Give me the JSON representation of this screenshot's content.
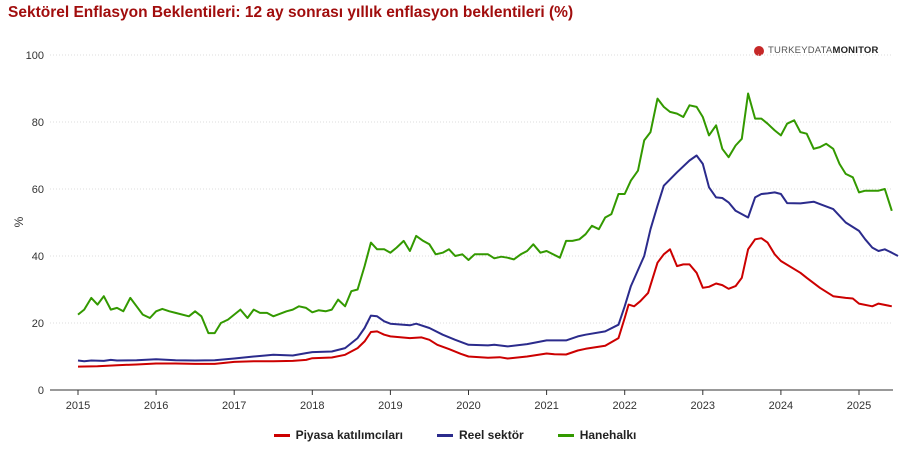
{
  "chart_data": {
    "type": "line",
    "title": "Sektörel Enflasyon Beklentileri: 12 ay sonrası yıllık enflasyon beklentileri (%)",
    "ylabel": "%",
    "xlabel": "",
    "ylim": [
      0,
      100
    ],
    "yticks": [
      0,
      20,
      40,
      60,
      80,
      100
    ],
    "xlim": [
      2015,
      2025.6
    ],
    "xticks": [
      2015,
      2016,
      2017,
      2018,
      2019,
      2020,
      2021,
      2022,
      2023,
      2024,
      2025
    ],
    "grid": true,
    "legend_position": "bottom",
    "series": [
      {
        "name": "Piyasa katılımcıları",
        "color": "#cc0000",
        "points": [
          [
            2015.0,
            7.0
          ],
          [
            2015.25,
            7.1
          ],
          [
            2015.5,
            7.4
          ],
          [
            2015.75,
            7.6
          ],
          [
            2016.0,
            7.9
          ],
          [
            2016.25,
            7.9
          ],
          [
            2016.5,
            7.8
          ],
          [
            2016.75,
            7.8
          ],
          [
            2017.0,
            8.4
          ],
          [
            2017.25,
            8.6
          ],
          [
            2017.5,
            8.6
          ],
          [
            2017.75,
            8.7
          ],
          [
            2017.92,
            9.0
          ],
          [
            2018.0,
            9.5
          ],
          [
            2018.25,
            9.7
          ],
          [
            2018.42,
            10.5
          ],
          [
            2018.58,
            12.5
          ],
          [
            2018.67,
            14.5
          ],
          [
            2018.75,
            17.3
          ],
          [
            2018.83,
            17.5
          ],
          [
            2018.92,
            16.5
          ],
          [
            2019.0,
            16.0
          ],
          [
            2019.25,
            15.5
          ],
          [
            2019.4,
            15.7
          ],
          [
            2019.5,
            15.0
          ],
          [
            2019.6,
            13.5
          ],
          [
            2019.75,
            12.2
          ],
          [
            2019.9,
            10.8
          ],
          [
            2020.0,
            10.0
          ],
          [
            2020.25,
            9.6
          ],
          [
            2020.4,
            9.8
          ],
          [
            2020.5,
            9.4
          ],
          [
            2020.75,
            10.0
          ],
          [
            2021.0,
            10.9
          ],
          [
            2021.1,
            10.7
          ],
          [
            2021.25,
            10.6
          ],
          [
            2021.4,
            11.8
          ],
          [
            2021.5,
            12.3
          ],
          [
            2021.75,
            13.2
          ],
          [
            2021.92,
            15.5
          ],
          [
            2022.0,
            21.5
          ],
          [
            2022.05,
            25.5
          ],
          [
            2022.12,
            25.0
          ],
          [
            2022.2,
            26.5
          ],
          [
            2022.3,
            29.0
          ],
          [
            2022.42,
            38.0
          ],
          [
            2022.5,
            40.5
          ],
          [
            2022.58,
            42.0
          ],
          [
            2022.67,
            37.0
          ],
          [
            2022.75,
            37.5
          ],
          [
            2022.83,
            37.5
          ],
          [
            2022.92,
            35.0
          ],
          [
            2023.0,
            30.5
          ],
          [
            2023.08,
            30.8
          ],
          [
            2023.17,
            31.8
          ],
          [
            2023.25,
            31.3
          ],
          [
            2023.33,
            30.2
          ],
          [
            2023.42,
            31.0
          ],
          [
            2023.5,
            33.5
          ],
          [
            2023.58,
            42.0
          ],
          [
            2023.67,
            45.0
          ],
          [
            2023.75,
            45.3
          ],
          [
            2023.83,
            44.0
          ],
          [
            2023.92,
            40.5
          ],
          [
            2024.0,
            38.5
          ],
          [
            2024.25,
            35.0
          ],
          [
            2024.33,
            33.5
          ],
          [
            2024.5,
            30.5
          ],
          [
            2024.67,
            28.0
          ],
          [
            2024.83,
            27.5
          ],
          [
            2024.92,
            27.3
          ],
          [
            2025.0,
            25.8
          ],
          [
            2025.17,
            25.0
          ],
          [
            2025.25,
            25.8
          ],
          [
            2025.42,
            25.0
          ]
        ]
      },
      {
        "name": "Reel sektör",
        "color": "#2b2b8c",
        "points": [
          [
            2015.0,
            8.8
          ],
          [
            2015.08,
            8.6
          ],
          [
            2015.17,
            8.8
          ],
          [
            2015.33,
            8.7
          ],
          [
            2015.42,
            9.0
          ],
          [
            2015.5,
            8.8
          ],
          [
            2015.75,
            8.9
          ],
          [
            2016.0,
            9.2
          ],
          [
            2016.25,
            8.9
          ],
          [
            2016.5,
            8.8
          ],
          [
            2016.75,
            8.9
          ],
          [
            2017.0,
            9.4
          ],
          [
            2017.25,
            10.0
          ],
          [
            2017.4,
            10.3
          ],
          [
            2017.5,
            10.5
          ],
          [
            2017.75,
            10.3
          ],
          [
            2017.92,
            11.0
          ],
          [
            2018.0,
            11.3
          ],
          [
            2018.25,
            11.5
          ],
          [
            2018.42,
            12.5
          ],
          [
            2018.58,
            15.5
          ],
          [
            2018.67,
            18.5
          ],
          [
            2018.75,
            22.2
          ],
          [
            2018.83,
            22.0
          ],
          [
            2018.92,
            20.5
          ],
          [
            2019.0,
            19.8
          ],
          [
            2019.25,
            19.3
          ],
          [
            2019.33,
            19.8
          ],
          [
            2019.5,
            18.5
          ],
          [
            2019.67,
            16.5
          ],
          [
            2019.83,
            15.0
          ],
          [
            2020.0,
            13.5
          ],
          [
            2020.25,
            13.3
          ],
          [
            2020.33,
            13.5
          ],
          [
            2020.5,
            13.0
          ],
          [
            2020.75,
            13.7
          ],
          [
            2021.0,
            14.8
          ],
          [
            2021.25,
            14.8
          ],
          [
            2021.4,
            16.0
          ],
          [
            2021.5,
            16.5
          ],
          [
            2021.75,
            17.5
          ],
          [
            2021.92,
            19.5
          ],
          [
            2022.0,
            25.0
          ],
          [
            2022.08,
            31.0
          ],
          [
            2022.25,
            40.0
          ],
          [
            2022.33,
            48.0
          ],
          [
            2022.42,
            55.0
          ],
          [
            2022.5,
            61.0
          ],
          [
            2022.67,
            65.0
          ],
          [
            2022.83,
            68.5
          ],
          [
            2022.92,
            70.0
          ],
          [
            2023.0,
            67.5
          ],
          [
            2023.08,
            60.5
          ],
          [
            2023.17,
            57.5
          ],
          [
            2023.25,
            57.3
          ],
          [
            2023.33,
            56.0
          ],
          [
            2023.42,
            53.5
          ],
          [
            2023.58,
            51.5
          ],
          [
            2023.67,
            57.5
          ],
          [
            2023.75,
            58.5
          ],
          [
            2023.83,
            58.7
          ],
          [
            2023.92,
            59.0
          ],
          [
            2024.0,
            58.5
          ],
          [
            2024.08,
            55.8
          ],
          [
            2024.25,
            55.7
          ],
          [
            2024.42,
            56.2
          ],
          [
            2024.5,
            55.5
          ],
          [
            2024.67,
            54.0
          ],
          [
            2024.75,
            52.0
          ],
          [
            2024.83,
            50.0
          ],
          [
            2025.0,
            47.5
          ],
          [
            2025.08,
            45.0
          ],
          [
            2025.17,
            42.5
          ],
          [
            2025.25,
            41.5
          ],
          [
            2025.33,
            42.0
          ],
          [
            2025.42,
            41.0
          ],
          [
            2025.5,
            40.0
          ]
        ]
      },
      {
        "name": "Hanehalkı",
        "color": "#339900",
        "points": [
          [
            2015.0,
            22.5
          ],
          [
            2015.08,
            24.0
          ],
          [
            2015.17,
            27.5
          ],
          [
            2015.25,
            25.5
          ],
          [
            2015.33,
            28.0
          ],
          [
            2015.42,
            24.0
          ],
          [
            2015.5,
            24.5
          ],
          [
            2015.58,
            23.5
          ],
          [
            2015.67,
            27.5
          ],
          [
            2015.75,
            25.0
          ],
          [
            2015.83,
            22.5
          ],
          [
            2015.92,
            21.5
          ],
          [
            2016.0,
            23.5
          ],
          [
            2016.08,
            24.2
          ],
          [
            2016.17,
            23.5
          ],
          [
            2016.25,
            23.0
          ],
          [
            2016.42,
            22.0
          ],
          [
            2016.5,
            23.5
          ],
          [
            2016.58,
            22.0
          ],
          [
            2016.67,
            17.0
          ],
          [
            2016.75,
            17.0
          ],
          [
            2016.83,
            20.0
          ],
          [
            2016.92,
            21.0
          ],
          [
            2017.0,
            22.5
          ],
          [
            2017.08,
            24.0
          ],
          [
            2017.17,
            21.5
          ],
          [
            2017.25,
            24.0
          ],
          [
            2017.33,
            23.0
          ],
          [
            2017.42,
            23.0
          ],
          [
            2017.5,
            22.0
          ],
          [
            2017.67,
            23.5
          ],
          [
            2017.75,
            24.0
          ],
          [
            2017.83,
            25.0
          ],
          [
            2017.92,
            24.5
          ],
          [
            2018.0,
            23.2
          ],
          [
            2018.08,
            23.8
          ],
          [
            2018.17,
            23.5
          ],
          [
            2018.25,
            24.0
          ],
          [
            2018.33,
            27.0
          ],
          [
            2018.42,
            25.0
          ],
          [
            2018.5,
            29.5
          ],
          [
            2018.58,
            30.0
          ],
          [
            2018.67,
            37.0
          ],
          [
            2018.75,
            44.0
          ],
          [
            2018.83,
            42.0
          ],
          [
            2018.92,
            42.0
          ],
          [
            2019.0,
            41.0
          ],
          [
            2019.08,
            42.5
          ],
          [
            2019.17,
            44.5
          ],
          [
            2019.25,
            41.5
          ],
          [
            2019.33,
            46.0
          ],
          [
            2019.42,
            44.5
          ],
          [
            2019.5,
            43.5
          ],
          [
            2019.58,
            40.5
          ],
          [
            2019.67,
            41.0
          ],
          [
            2019.75,
            42.0
          ],
          [
            2019.83,
            40.0
          ],
          [
            2019.92,
            40.5
          ],
          [
            2020.0,
            38.8
          ],
          [
            2020.08,
            40.5
          ],
          [
            2020.17,
            40.5
          ],
          [
            2020.25,
            40.5
          ],
          [
            2020.33,
            39.3
          ],
          [
            2020.42,
            39.8
          ],
          [
            2020.5,
            39.5
          ],
          [
            2020.58,
            39.0
          ],
          [
            2020.67,
            40.5
          ],
          [
            2020.75,
            41.5
          ],
          [
            2020.83,
            43.5
          ],
          [
            2020.92,
            41.0
          ],
          [
            2021.0,
            41.5
          ],
          [
            2021.17,
            39.5
          ],
          [
            2021.25,
            44.5
          ],
          [
            2021.33,
            44.5
          ],
          [
            2021.42,
            45.0
          ],
          [
            2021.5,
            46.5
          ],
          [
            2021.58,
            49.0
          ],
          [
            2021.67,
            48.0
          ],
          [
            2021.75,
            51.5
          ],
          [
            2021.83,
            52.5
          ],
          [
            2021.92,
            58.5
          ],
          [
            2022.0,
            58.5
          ],
          [
            2022.08,
            62.5
          ],
          [
            2022.17,
            65.5
          ],
          [
            2022.25,
            74.5
          ],
          [
            2022.33,
            77.0
          ],
          [
            2022.42,
            87.0
          ],
          [
            2022.5,
            84.5
          ],
          [
            2022.58,
            83.0
          ],
          [
            2022.67,
            82.5
          ],
          [
            2022.75,
            81.5
          ],
          [
            2022.83,
            85.0
          ],
          [
            2022.92,
            84.5
          ],
          [
            2023.0,
            81.5
          ],
          [
            2023.08,
            76.0
          ],
          [
            2023.17,
            79.0
          ],
          [
            2023.25,
            72.0
          ],
          [
            2023.33,
            69.5
          ],
          [
            2023.42,
            73.0
          ],
          [
            2023.5,
            75.0
          ],
          [
            2023.58,
            88.5
          ],
          [
            2023.67,
            81.0
          ],
          [
            2023.75,
            81.0
          ],
          [
            2023.83,
            79.5
          ],
          [
            2023.92,
            77.5
          ],
          [
            2024.0,
            76.0
          ],
          [
            2024.08,
            79.5
          ],
          [
            2024.17,
            80.5
          ],
          [
            2024.25,
            77.0
          ],
          [
            2024.33,
            76.5
          ],
          [
            2024.42,
            72.0
          ],
          [
            2024.5,
            72.5
          ],
          [
            2024.58,
            73.5
          ],
          [
            2024.67,
            72.0
          ],
          [
            2024.75,
            67.5
          ],
          [
            2024.83,
            64.5
          ],
          [
            2024.92,
            63.5
          ],
          [
            2025.0,
            59.0
          ],
          [
            2025.08,
            59.5
          ],
          [
            2025.17,
            59.5
          ],
          [
            2025.25,
            59.5
          ],
          [
            2025.33,
            60.0
          ],
          [
            2025.42,
            53.5
          ]
        ]
      }
    ]
  },
  "brand": {
    "prefix": "TURKEY",
    "middle": "DATA",
    "suffix": "MONITOR"
  }
}
